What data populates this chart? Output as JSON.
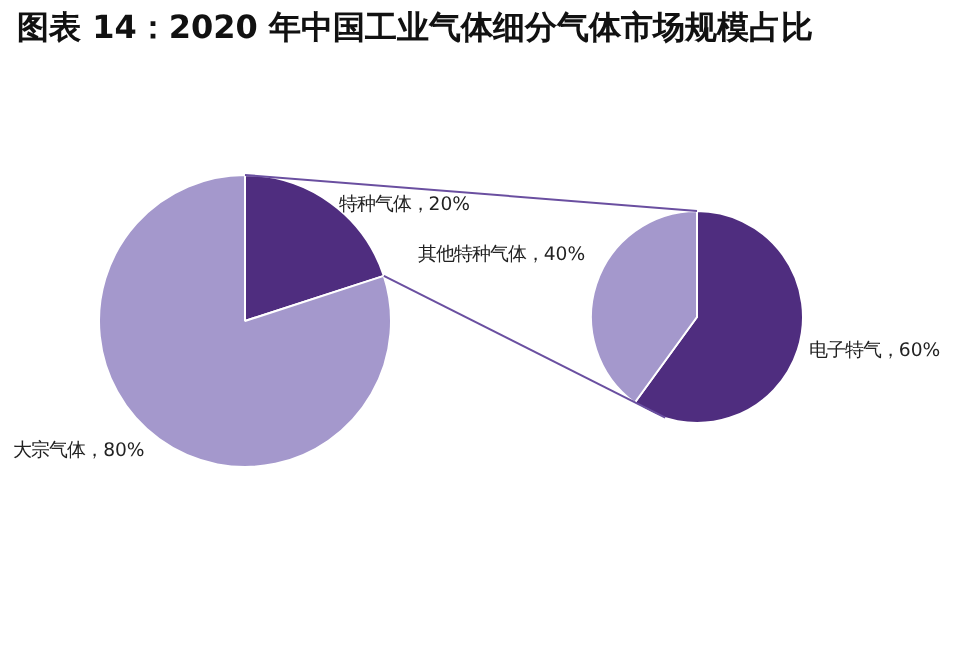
{
  "chart_data": [
    {
      "type": "pie",
      "title": "图表 14：2020 年中国工业气体细分气体市场规模占比",
      "categories": [
        "特种气体",
        "大宗气体"
      ],
      "values": [
        20,
        80
      ],
      "colors": [
        "#4f2d7f",
        "#a498cc"
      ],
      "value_labels": [
        "20%",
        "80%"
      ]
    },
    {
      "type": "pie",
      "categories": [
        "电子特气",
        "其他特种气体"
      ],
      "values": [
        60,
        40
      ],
      "colors": [
        "#4f2d7f",
        "#a498cc"
      ],
      "value_labels": [
        "60%",
        "40%"
      ]
    }
  ]
}
